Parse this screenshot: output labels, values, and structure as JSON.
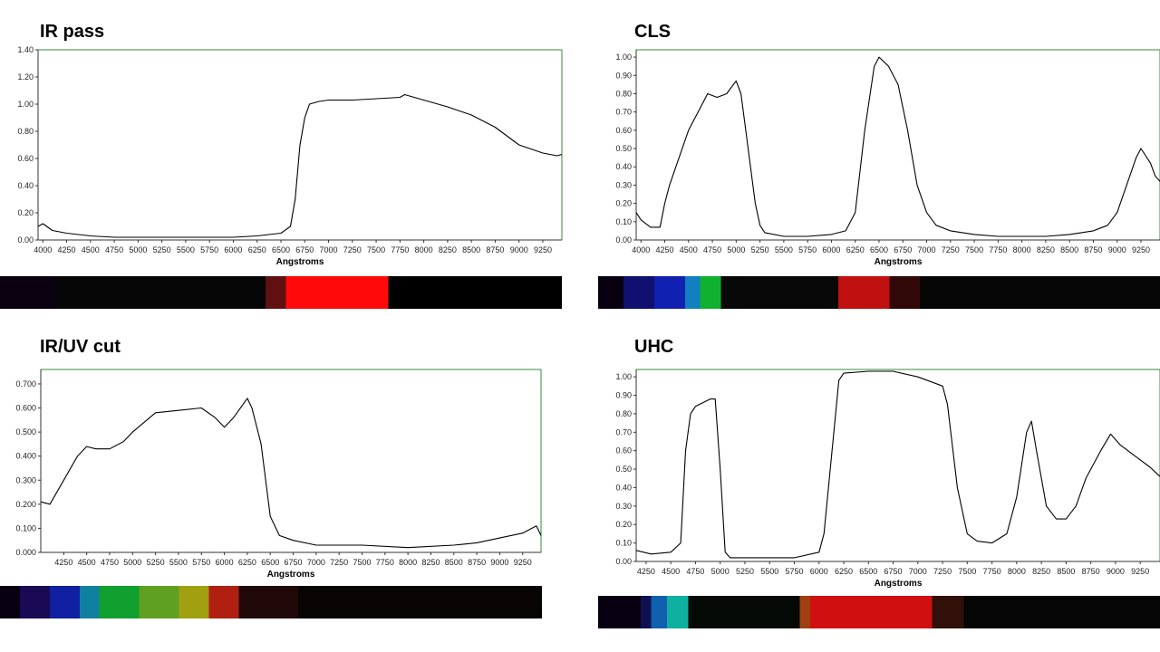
{
  "colors": {
    "frame": "#3a8a3a",
    "curve": "#000000",
    "axis": "#333333",
    "strip_background": "#000000"
  },
  "panels": [
    {
      "title": "IR pass"
    },
    {
      "title": "CLS"
    },
    {
      "title": "IR/UV cut"
    },
    {
      "title": "UHC"
    }
  ],
  "chart_data": [
    {
      "type": "line",
      "title": "IR pass",
      "xlabel": "Angstroms",
      "ylabel": "",
      "xlim": [
        3950,
        9450
      ],
      "ylim": [
        0,
        1.4
      ],
      "xticks": [
        4000,
        4250,
        4500,
        4750,
        5000,
        5250,
        5500,
        5750,
        6000,
        6250,
        6500,
        6750,
        7000,
        7250,
        7500,
        7750,
        8000,
        8250,
        8500,
        8750,
        9000,
        9250
      ],
      "yticks": [
        0.0,
        0.2,
        0.4,
        0.6,
        0.8,
        1.0,
        1.2,
        1.4
      ],
      "ytick_decimals": 2,
      "grid": false,
      "legend": "none",
      "x": [
        3950,
        4000,
        4100,
        4250,
        4500,
        4750,
        5000,
        5500,
        6000,
        6250,
        6500,
        6600,
        6650,
        6700,
        6750,
        6800,
        6900,
        7000,
        7250,
        7500,
        7750,
        7800,
        8000,
        8250,
        8500,
        8750,
        9000,
        9250,
        9400,
        9450
      ],
      "y": [
        0.1,
        0.12,
        0.07,
        0.05,
        0.03,
        0.02,
        0.02,
        0.02,
        0.02,
        0.03,
        0.05,
        0.1,
        0.3,
        0.7,
        0.9,
        1.0,
        1.02,
        1.03,
        1.03,
        1.04,
        1.05,
        1.07,
        1.03,
        0.98,
        0.92,
        0.83,
        0.7,
        0.64,
        0.62,
        0.63
      ],
      "spectrum_bands": [
        {
          "start": 3950,
          "end": 4500,
          "color": "#0a0010"
        },
        {
          "start": 4500,
          "end": 6550,
          "color": "#060606"
        },
        {
          "start": 6550,
          "end": 6750,
          "color": "#601010"
        },
        {
          "start": 6750,
          "end": 7750,
          "color": "#ff0a0a"
        },
        {
          "start": 7750,
          "end": 9450,
          "color": "#000000"
        }
      ]
    },
    {
      "type": "line",
      "title": "CLS",
      "xlabel": "Angstroms",
      "ylabel": "",
      "xlim": [
        3950,
        9450
      ],
      "ylim": [
        0,
        1.04
      ],
      "xticks": [
        4000,
        4250,
        4500,
        4750,
        5000,
        5250,
        5500,
        5750,
        6000,
        6250,
        6500,
        6750,
        7000,
        7250,
        7500,
        7750,
        8000,
        8250,
        8500,
        8750,
        9000,
        9250
      ],
      "yticks": [
        0.0,
        0.1,
        0.2,
        0.3,
        0.4,
        0.5,
        0.6,
        0.7,
        0.8,
        0.9,
        1.0
      ],
      "ytick_decimals": 2,
      "grid": false,
      "legend": "none",
      "x": [
        3950,
        4000,
        4100,
        4200,
        4250,
        4300,
        4400,
        4500,
        4600,
        4700,
        4800,
        4900,
        5000,
        5050,
        5100,
        5200,
        5250,
        5300,
        5500,
        5750,
        6000,
        6150,
        6250,
        6350,
        6450,
        6500,
        6600,
        6700,
        6800,
        6900,
        7000,
        7100,
        7250,
        7500,
        7750,
        8000,
        8250,
        8500,
        8750,
        8900,
        9000,
        9100,
        9200,
        9250,
        9350,
        9400,
        9450
      ],
      "y": [
        0.15,
        0.11,
        0.07,
        0.07,
        0.2,
        0.3,
        0.45,
        0.6,
        0.7,
        0.8,
        0.78,
        0.8,
        0.87,
        0.8,
        0.6,
        0.2,
        0.08,
        0.04,
        0.02,
        0.02,
        0.03,
        0.05,
        0.15,
        0.6,
        0.95,
        1.0,
        0.95,
        0.85,
        0.6,
        0.3,
        0.15,
        0.08,
        0.05,
        0.03,
        0.02,
        0.02,
        0.02,
        0.03,
        0.05,
        0.08,
        0.15,
        0.3,
        0.45,
        0.5,
        0.42,
        0.35,
        0.32
      ],
      "spectrum_bands": [
        {
          "start": 3950,
          "end": 4200,
          "color": "#080010"
        },
        {
          "start": 4200,
          "end": 4500,
          "color": "#101070"
        },
        {
          "start": 4500,
          "end": 4800,
          "color": "#1020b0"
        },
        {
          "start": 4800,
          "end": 4950,
          "color": "#1080c0"
        },
        {
          "start": 4950,
          "end": 5150,
          "color": "#10b030"
        },
        {
          "start": 5150,
          "end": 6300,
          "color": "#080808"
        },
        {
          "start": 6300,
          "end": 6800,
          "color": "#c01010"
        },
        {
          "start": 6800,
          "end": 7100,
          "color": "#300808"
        },
        {
          "start": 7100,
          "end": 9450,
          "color": "#050505"
        }
      ]
    },
    {
      "type": "line",
      "title": "IR/UV cut",
      "xlabel": "Angstroms",
      "ylabel": "",
      "xlim": [
        4000,
        9450
      ],
      "ylim": [
        0,
        0.76
      ],
      "xticks": [
        4250,
        4500,
        4750,
        5000,
        5250,
        5500,
        5750,
        6000,
        6250,
        6500,
        6750,
        7000,
        7250,
        7500,
        7750,
        8000,
        8250,
        8500,
        8750,
        9000,
        9250
      ],
      "yticks": [
        0.0,
        0.1,
        0.2,
        0.3,
        0.4,
        0.5,
        0.6,
        0.7
      ],
      "ytick_decimals": 3,
      "grid": false,
      "legend": "none",
      "x": [
        4000,
        4100,
        4250,
        4400,
        4500,
        4600,
        4750,
        4900,
        5000,
        5250,
        5500,
        5750,
        5900,
        6000,
        6100,
        6250,
        6300,
        6400,
        6500,
        6600,
        6750,
        7000,
        7500,
        8000,
        8500,
        8750,
        9000,
        9250,
        9400,
        9450
      ],
      "y": [
        0.21,
        0.2,
        0.3,
        0.4,
        0.44,
        0.43,
        0.43,
        0.46,
        0.5,
        0.58,
        0.59,
        0.6,
        0.56,
        0.52,
        0.56,
        0.64,
        0.6,
        0.45,
        0.15,
        0.07,
        0.05,
        0.03,
        0.03,
        0.02,
        0.03,
        0.04,
        0.06,
        0.08,
        0.11,
        0.07
      ],
      "spectrum_bands": [
        {
          "start": 4000,
          "end": 4200,
          "color": "#080010"
        },
        {
          "start": 4200,
          "end": 4500,
          "color": "#1a0a55"
        },
        {
          "start": 4500,
          "end": 4800,
          "color": "#1020a0"
        },
        {
          "start": 4800,
          "end": 5000,
          "color": "#1080a0"
        },
        {
          "start": 5000,
          "end": 5400,
          "color": "#10a030"
        },
        {
          "start": 5400,
          "end": 5800,
          "color": "#60a020"
        },
        {
          "start": 5800,
          "end": 6100,
          "color": "#a0a010"
        },
        {
          "start": 6100,
          "end": 6400,
          "color": "#b02010"
        },
        {
          "start": 6400,
          "end": 7000,
          "color": "#200808"
        },
        {
          "start": 7000,
          "end": 9450,
          "color": "#080404"
        }
      ]
    },
    {
      "type": "line",
      "title": "UHC",
      "xlabel": "Angstroms",
      "ylabel": "",
      "xlim": [
        4150,
        9450
      ],
      "ylim": [
        0,
        1.04
      ],
      "xticks": [
        4250,
        4500,
        4750,
        5000,
        5250,
        5500,
        5750,
        6000,
        6250,
        6500,
        6750,
        7000,
        7250,
        7500,
        7750,
        8000,
        8250,
        8500,
        8750,
        9000,
        9250
      ],
      "yticks": [
        0.0,
        0.1,
        0.2,
        0.3,
        0.4,
        0.5,
        0.6,
        0.7,
        0.8,
        0.9,
        1.0
      ],
      "ytick_decimals": 2,
      "grid": false,
      "legend": "none",
      "x": [
        4150,
        4300,
        4500,
        4600,
        4650,
        4700,
        4750,
        4900,
        4950,
        5000,
        5050,
        5100,
        5250,
        5500,
        5750,
        6000,
        6050,
        6150,
        6200,
        6250,
        6500,
        6750,
        7000,
        7250,
        7300,
        7400,
        7500,
        7600,
        7750,
        7900,
        8000,
        8100,
        8150,
        8200,
        8300,
        8400,
        8500,
        8600,
        8700,
        8850,
        8950,
        9050,
        9200,
        9350,
        9450
      ],
      "y": [
        0.06,
        0.04,
        0.05,
        0.1,
        0.6,
        0.8,
        0.84,
        0.88,
        0.88,
        0.5,
        0.05,
        0.02,
        0.02,
        0.02,
        0.02,
        0.05,
        0.15,
        0.7,
        0.98,
        1.02,
        1.03,
        1.03,
        1.0,
        0.95,
        0.85,
        0.4,
        0.15,
        0.11,
        0.1,
        0.15,
        0.35,
        0.7,
        0.76,
        0.6,
        0.3,
        0.23,
        0.23,
        0.3,
        0.45,
        0.6,
        0.69,
        0.63,
        0.57,
        0.51,
        0.46
      ],
      "spectrum_bands": [
        {
          "start": 4150,
          "end": 4550,
          "color": "#080010"
        },
        {
          "start": 4550,
          "end": 4650,
          "color": "#101050"
        },
        {
          "start": 4650,
          "end": 4800,
          "color": "#1060b0"
        },
        {
          "start": 4800,
          "end": 5000,
          "color": "#10b0a0"
        },
        {
          "start": 5000,
          "end": 6050,
          "color": "#060a06"
        },
        {
          "start": 6050,
          "end": 6150,
          "color": "#a04010"
        },
        {
          "start": 6150,
          "end": 7300,
          "color": "#d01010"
        },
        {
          "start": 7300,
          "end": 7600,
          "color": "#301008"
        },
        {
          "start": 7600,
          "end": 9450,
          "color": "#050505"
        }
      ]
    }
  ]
}
